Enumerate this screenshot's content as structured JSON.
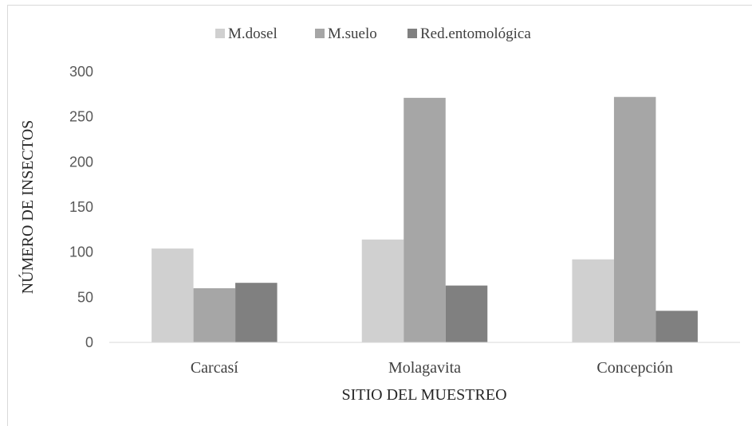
{
  "chart_data": {
    "type": "bar",
    "categories": [
      "Carcasí",
      "Molagavita",
      "Concepción"
    ],
    "series": [
      {
        "name": "M.dosel",
        "values": [
          104,
          114,
          92
        ],
        "color": "#d0d0d0"
      },
      {
        "name": "M.suelo",
        "values": [
          60,
          271,
          272
        ],
        "color": "#a6a6a6"
      },
      {
        "name": "Red.entomológica",
        "values": [
          66,
          63,
          35
        ],
        "color": "#808080"
      }
    ],
    "title": "",
    "xlabel": "SITIO DEL MUESTREO",
    "ylabel": "NÚMERO DE INSECTOS",
    "ylim": [
      0,
      300
    ],
    "yticks": [
      "0",
      "50",
      "100",
      "150",
      "200",
      "250",
      "300"
    ],
    "grid": false,
    "legend_position": "top"
  }
}
